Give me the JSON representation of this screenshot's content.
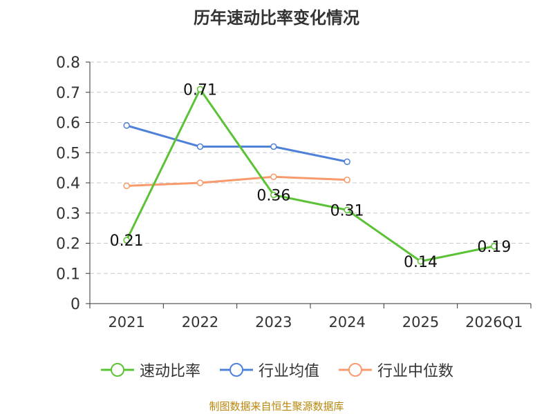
{
  "title": "历年速动比率变化情况",
  "source": "制图数据来自恒生聚源数据库",
  "colors": {
    "quick_ratio": "#5bc236",
    "industry_avg": "#4f81d9",
    "industry_median": "#f79a6c",
    "grid": "#c8c8c8",
    "axis": "#333333"
  },
  "chart_data": {
    "type": "line",
    "title": "历年速动比率变化情况",
    "categories": [
      "2021",
      "2022",
      "2023",
      "2024",
      "2025",
      "2026Q1"
    ],
    "ylim": [
      0,
      0.8
    ],
    "yticks": [
      "0",
      "0.1",
      "0.2",
      "0.3",
      "0.4",
      "0.5",
      "0.6",
      "0.7",
      "0.8"
    ],
    "series": [
      {
        "name": "速动比率",
        "color_key": "quick_ratio",
        "values": [
          0.21,
          0.71,
          0.36,
          0.31,
          0.14,
          0.19
        ],
        "labels": [
          "0.21",
          "0.71",
          "0.36",
          "0.31",
          "0.14",
          "0.19"
        ],
        "show_labels": true
      },
      {
        "name": "行业均值",
        "color_key": "industry_avg",
        "values": [
          0.59,
          0.52,
          0.52,
          0.47,
          null,
          null
        ],
        "show_labels": false
      },
      {
        "name": "行业中位数",
        "color_key": "industry_median",
        "values": [
          0.39,
          0.4,
          0.42,
          0.41,
          null,
          null
        ],
        "show_labels": false
      }
    ]
  }
}
